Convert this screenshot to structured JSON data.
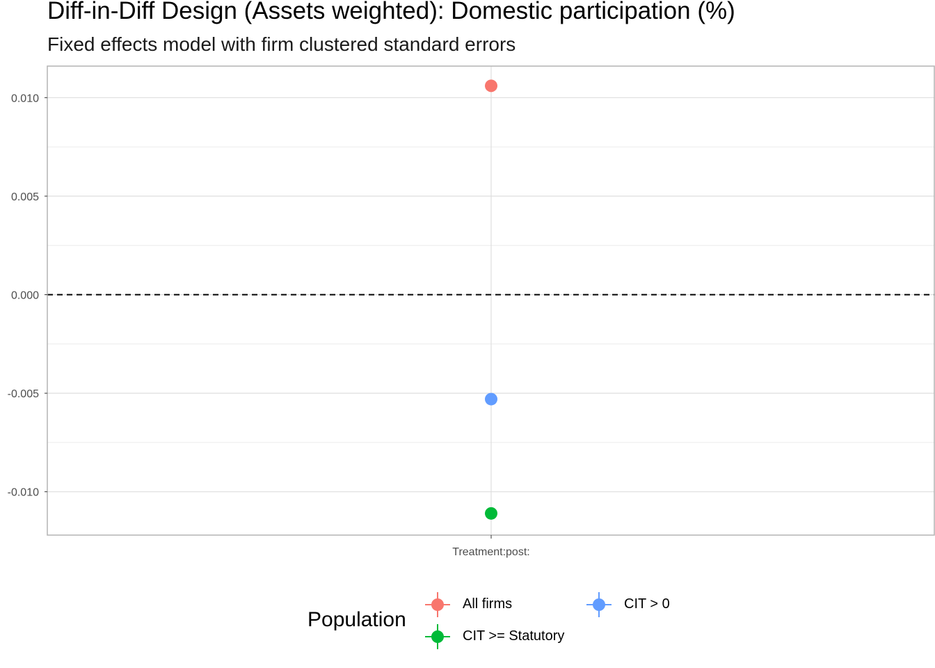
{
  "chart_data": {
    "type": "scatter",
    "title": "Diff-in-Diff Design (Assets weighted): Domestic participation (%)",
    "subtitle": "Fixed effects model with firm clustered standard errors",
    "categories": [
      "Treatment:post:"
    ],
    "ylim": [
      -0.0122,
      0.0116
    ],
    "y_ticks": [
      "0.010",
      "0.005",
      "0.000",
      "-0.005",
      "-0.010"
    ],
    "y_tick_values": [
      0.01,
      0.005,
      0.0,
      -0.005,
      -0.01
    ],
    "reference_line": 0,
    "grid": true,
    "legend": {
      "title": "Population",
      "position": "bottom",
      "entries": [
        "All firms",
        "CIT > 0",
        "CIT >= Statutory"
      ]
    },
    "series": [
      {
        "name": "All firms",
        "color": "#F8766D",
        "values": [
          0.0106
        ]
      },
      {
        "name": "CIT > 0",
        "color": "#619CFF",
        "values": [
          -0.0053
        ]
      },
      {
        "name": "CIT >= Statutory",
        "color": "#00BA38",
        "values": [
          -0.0111
        ]
      }
    ]
  }
}
